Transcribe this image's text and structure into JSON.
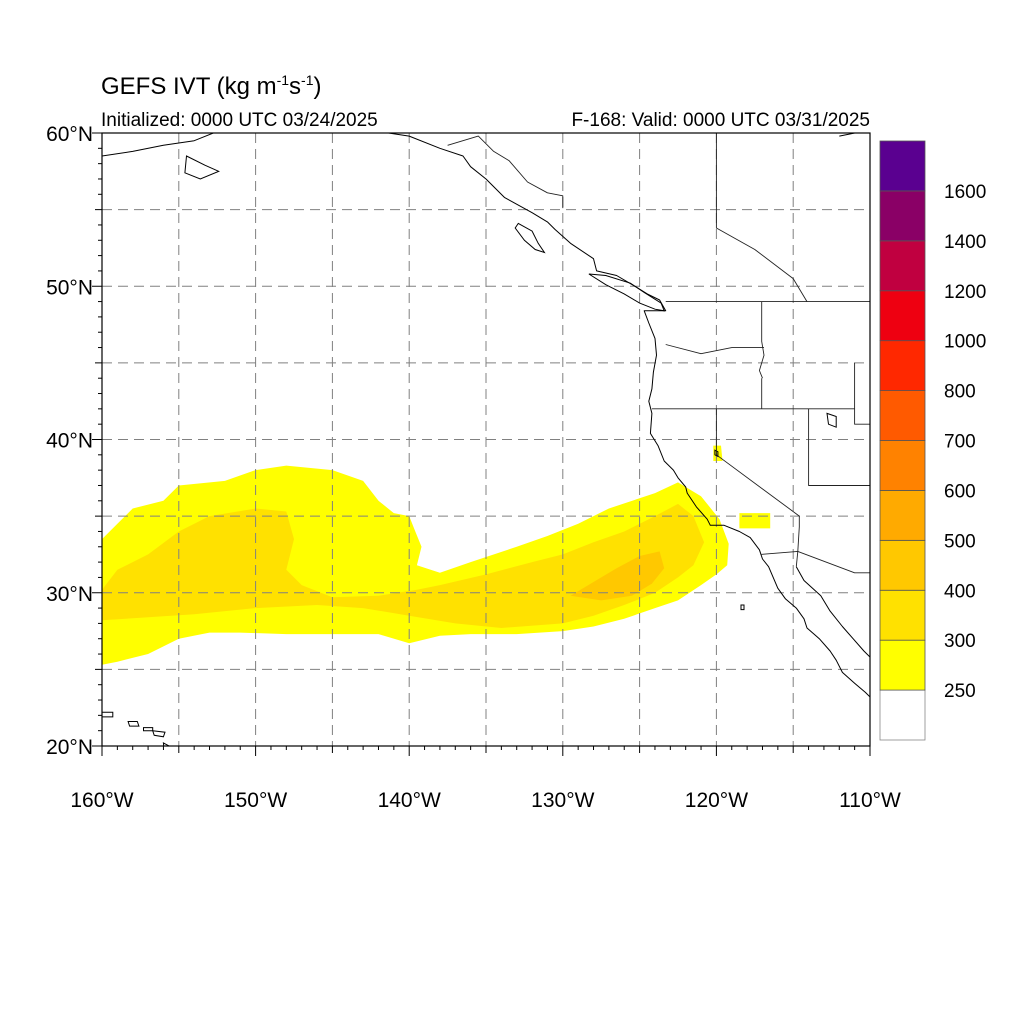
{
  "title": {
    "prefix": "GEFS IVT (kg m",
    "exp1": "-1",
    "mid": "s",
    "exp2": "-1",
    "suffix": ")"
  },
  "subtitle_left": "Initialized: 0000 UTC 03/24/2025",
  "subtitle_right": "F-168: Valid: 0000 UTC 03/31/2025",
  "map": {
    "lon_range": [
      -160,
      -110
    ],
    "lat_range": [
      20,
      60
    ],
    "lon_ticks": [
      {
        "value": -160,
        "label": "160°W"
      },
      {
        "value": -150,
        "label": "150°W"
      },
      {
        "value": -140,
        "label": "140°W"
      },
      {
        "value": -130,
        "label": "130°W"
      },
      {
        "value": -120,
        "label": "120°W"
      },
      {
        "value": -110,
        "label": "110°W"
      }
    ],
    "lat_ticks": [
      {
        "value": 60,
        "label": "60°N"
      },
      {
        "value": 50,
        "label": "50°N"
      },
      {
        "value": 40,
        "label": "40°N"
      },
      {
        "value": 30,
        "label": "30°N"
      },
      {
        "value": 20,
        "label": "20°N"
      }
    ],
    "grid_lon_step": 5,
    "grid_lat_step": 5,
    "grid": true,
    "grid_style": "dashed"
  },
  "legend": {
    "placement": "right",
    "bins": [
      {
        "min": 250,
        "max": 300,
        "color": "#ffff00"
      },
      {
        "min": 300,
        "max": 400,
        "color": "#ffe100"
      },
      {
        "min": 400,
        "max": 500,
        "color": "#ffc800"
      },
      {
        "min": 500,
        "max": 600,
        "color": "#ffaa00"
      },
      {
        "min": 600,
        "max": 700,
        "color": "#ff8200"
      },
      {
        "min": 700,
        "max": 800,
        "color": "#ff5a00"
      },
      {
        "min": 800,
        "max": 1000,
        "color": "#ff2800"
      },
      {
        "min": 1000,
        "max": 1200,
        "color": "#ee0011"
      },
      {
        "min": 1200,
        "max": 1400,
        "color": "#c00040"
      },
      {
        "min": 1400,
        "max": 1600,
        "color": "#8a0066"
      },
      {
        "min": 1600,
        "max": null,
        "color": "#5a0090"
      }
    ],
    "below_color": "#ffffff",
    "labels": [
      "250",
      "300",
      "400",
      "500",
      "600",
      "700",
      "800",
      "1000",
      "1200",
      "1400",
      "1600"
    ]
  },
  "chart_data": {
    "type": "heatmap",
    "field": "integrated vapor transport",
    "units": "kg m-1 s-1",
    "regions": [
      {
        "level": "250-300",
        "color": "#ffff00",
        "outline": [
          [
            -160,
            33.5
          ],
          [
            -159,
            34.5
          ],
          [
            -158,
            35.5
          ],
          [
            -156,
            36
          ],
          [
            -155,
            37
          ],
          [
            -152,
            37.3
          ],
          [
            -150,
            38
          ],
          [
            -148,
            38.3
          ],
          [
            -145,
            38
          ],
          [
            -143,
            37.3
          ],
          [
            -142,
            36
          ],
          [
            -141,
            35.2
          ],
          [
            -140,
            35
          ],
          [
            -139.6,
            34
          ],
          [
            -139.2,
            33
          ],
          [
            -139.5,
            31.8
          ],
          [
            -138,
            31.3
          ],
          [
            -136,
            32
          ],
          [
            -133,
            33
          ],
          [
            -131,
            33.7
          ],
          [
            -129,
            34.5
          ],
          [
            -127,
            35.5
          ],
          [
            -124,
            36.5
          ],
          [
            -122.5,
            37.2
          ],
          [
            -121,
            36.3
          ],
          [
            -119.8,
            34.8
          ],
          [
            -119.2,
            33.2
          ],
          [
            -119.3,
            31.8
          ],
          [
            -120,
            31.2
          ],
          [
            -121,
            30.5
          ],
          [
            -122.5,
            29.5
          ],
          [
            -124,
            29
          ],
          [
            -126,
            28.3
          ],
          [
            -128,
            27.8
          ],
          [
            -130,
            27.5
          ],
          [
            -133,
            27.3
          ],
          [
            -136,
            27.3
          ],
          [
            -138,
            27.2
          ],
          [
            -140,
            26.7
          ],
          [
            -142,
            27.3
          ],
          [
            -145,
            27.3
          ],
          [
            -148,
            27.3
          ],
          [
            -151,
            27.4
          ],
          [
            -153,
            27.4
          ],
          [
            -155,
            27
          ],
          [
            -157,
            26
          ],
          [
            -159,
            25.5
          ],
          [
            -160,
            25.3
          ]
        ]
      },
      {
        "level": "250-300",
        "color": "#ffff00",
        "outline": [
          [
            -120.2,
            39.6
          ],
          [
            -119.7,
            39.6
          ],
          [
            -119.6,
            38.6
          ],
          [
            -120.2,
            38.6
          ]
        ]
      },
      {
        "level": "250-300",
        "color": "#ffff00",
        "outline": [
          [
            -118.5,
            35.2
          ],
          [
            -116.5,
            35.2
          ],
          [
            -116.5,
            34.2
          ],
          [
            -118.5,
            34.2
          ]
        ]
      },
      {
        "level": "300-400",
        "color": "#ffe100",
        "outline": [
          [
            -160,
            30.2
          ],
          [
            -159,
            31.5
          ],
          [
            -157,
            32.5
          ],
          [
            -155,
            34
          ],
          [
            -153,
            35
          ],
          [
            -150,
            35.5
          ],
          [
            -148,
            35.3
          ],
          [
            -147.5,
            33.5
          ],
          [
            -148,
            31.5
          ],
          [
            -147,
            30.5
          ],
          [
            -145,
            29.7
          ],
          [
            -142,
            29.8
          ],
          [
            -139.5,
            30.2
          ],
          [
            -138,
            30.5
          ],
          [
            -135,
            31.2
          ],
          [
            -132,
            32
          ],
          [
            -130,
            32.5
          ],
          [
            -128,
            33.3
          ],
          [
            -126,
            34
          ],
          [
            -124,
            35
          ],
          [
            -122.5,
            35.8
          ],
          [
            -121.5,
            35
          ],
          [
            -120.8,
            33.3
          ],
          [
            -121.5,
            31.8
          ],
          [
            -122.5,
            31
          ],
          [
            -124,
            30
          ],
          [
            -126,
            29.2
          ],
          [
            -128,
            28.5
          ],
          [
            -130,
            28
          ],
          [
            -134,
            27.7
          ],
          [
            -137,
            28
          ],
          [
            -140,
            28.5
          ],
          [
            -143,
            29
          ],
          [
            -146,
            29.2
          ],
          [
            -150,
            29
          ],
          [
            -154,
            28.6
          ],
          [
            -157,
            28.4
          ],
          [
            -160,
            28.2
          ]
        ]
      },
      {
        "level": "400-500",
        "color": "#ffc800",
        "outline": [
          [
            -129.5,
            29.8
          ],
          [
            -128,
            30.7
          ],
          [
            -126.5,
            31.6
          ],
          [
            -125,
            32.4
          ],
          [
            -123.7,
            32.7
          ],
          [
            -123.4,
            31.6
          ],
          [
            -124.2,
            30.6
          ],
          [
            -125.5,
            29.8
          ],
          [
            -127.5,
            29.5
          ]
        ]
      }
    ]
  },
  "basemap": {
    "coastline_west": [
      [
        -166,
        60
      ],
      [
        -160,
        58.5
      ],
      [
        -158,
        58.8
      ],
      [
        -156,
        59.2
      ],
      [
        -154,
        59.5
      ],
      [
        -152,
        60.3
      ],
      [
        -151.5,
        61
      ],
      [
        -149.5,
        61
      ],
      [
        -148,
        60.6
      ],
      [
        -146,
        61
      ],
      [
        -144,
        60.2
      ],
      [
        -142,
        60.1
      ],
      [
        -140,
        59.8
      ],
      [
        -138,
        59
      ],
      [
        -136.5,
        58.5
      ],
      [
        -136,
        57.8
      ],
      [
        -135,
        57
      ],
      [
        -133.8,
        55.8
      ],
      [
        -132,
        54.8
      ],
      [
        -131,
        54.2
      ],
      [
        -130.5,
        53.7
      ],
      [
        -129.5,
        52.8
      ],
      [
        -128,
        51.8
      ],
      [
        -127.8,
        51
      ],
      [
        -126.5,
        50.7
      ],
      [
        -125.3,
        50
      ],
      [
        -124.5,
        49.5
      ],
      [
        -123.7,
        49.1
      ],
      [
        -123.3,
        48.4
      ],
      [
        -124.7,
        48.4
      ],
      [
        -124.4,
        47.6
      ],
      [
        -124,
        46.6
      ],
      [
        -123.9,
        45.5
      ],
      [
        -124.1,
        44.4
      ],
      [
        -124.2,
        43.3
      ],
      [
        -124.4,
        42.5
      ],
      [
        -124.2,
        41.7
      ],
      [
        -124.3,
        40.4
      ],
      [
        -123.8,
        39.6
      ],
      [
        -123.4,
        38.6
      ],
      [
        -122.8,
        38
      ],
      [
        -122.5,
        37.5
      ],
      [
        -122,
        36.9
      ],
      [
        -121.9,
        36.5
      ],
      [
        -121.3,
        35.6
      ],
      [
        -120.6,
        34.8
      ],
      [
        -120.4,
        34.4
      ],
      [
        -119.5,
        34.4
      ],
      [
        -118.5,
        34
      ],
      [
        -117.8,
        33.6
      ],
      [
        -117.2,
        32.8
      ],
      [
        -117,
        32.2
      ],
      [
        -116.6,
        31.7
      ],
      [
        -116.3,
        31
      ],
      [
        -116,
        30.3
      ],
      [
        -115.5,
        29.6
      ],
      [
        -114.8,
        29
      ],
      [
        -114.3,
        28.3
      ],
      [
        -114.1,
        27.7
      ],
      [
        -113.3,
        27
      ],
      [
        -112.6,
        26.2
      ],
      [
        -112.2,
        25.6
      ],
      [
        -111.8,
        24.8
      ],
      [
        -111,
        24.1
      ],
      [
        -110.3,
        23.5
      ],
      [
        -109.8,
        23
      ]
    ],
    "coastline_gulf": [
      [
        -114.8,
        31.7
      ],
      [
        -114.3,
        30.8
      ],
      [
        -113.2,
        29.8
      ],
      [
        -112.6,
        28.8
      ],
      [
        -111.8,
        27.8
      ],
      [
        -111.1,
        27
      ],
      [
        -110.4,
        26.2
      ],
      [
        -109.6,
        25.4
      ],
      [
        -109.3,
        24.6
      ],
      [
        -108.5,
        24
      ],
      [
        -107.5,
        23.5
      ],
      [
        -106.5,
        22.8
      ]
    ],
    "vancouver_island": [
      [
        -128.3,
        50.8
      ],
      [
        -127.2,
        50.1
      ],
      [
        -126,
        49.5
      ],
      [
        -125,
        48.9
      ],
      [
        -124,
        48.5
      ],
      [
        -123.4,
        48.4
      ],
      [
        -123.6,
        48.9
      ],
      [
        -124.7,
        49.6
      ],
      [
        -125.6,
        50.2
      ],
      [
        -127.2,
        50.7
      ]
    ],
    "haida_gwaii": [
      [
        -132.9,
        54.1
      ],
      [
        -132,
        53.6
      ],
      [
        -131.6,
        52.8
      ],
      [
        -131.2,
        52.2
      ],
      [
        -131.8,
        52.4
      ],
      [
        -132.5,
        53
      ],
      [
        -133.1,
        53.8
      ]
    ],
    "kodiak": [
      [
        -154.5,
        58.5
      ],
      [
        -153.3,
        57.9
      ],
      [
        -152.4,
        57.5
      ],
      [
        -153.6,
        57
      ],
      [
        -154.6,
        57.4
      ]
    ],
    "hawaii_islands": [
      [
        [
          -160.6,
          22.2
        ],
        [
          -159.3,
          22.2
        ],
        [
          -159.3,
          21.9
        ],
        [
          -160.5,
          21.9
        ]
      ],
      [
        [
          -158.3,
          21.6
        ],
        [
          -157.7,
          21.6
        ],
        [
          -157.6,
          21.3
        ],
        [
          -158.2,
          21.3
        ]
      ],
      [
        [
          -157.3,
          21.2
        ],
        [
          -156.7,
          21.2
        ],
        [
          -156.7,
          21.0
        ],
        [
          -157.3,
          21.0
        ]
      ],
      [
        [
          -156.7,
          21.0
        ],
        [
          -155.9,
          20.9
        ],
        [
          -156.0,
          20.6
        ],
        [
          -156.6,
          20.7
        ]
      ],
      [
        [
          -156.0,
          20.2
        ],
        [
          -154.9,
          19.6
        ],
        [
          -155.2,
          19.0
        ],
        [
          -155.9,
          19.2
        ]
      ]
    ],
    "guadalupe_island": [
      [
        -118.4,
        29.2
      ],
      [
        -118.2,
        29.2
      ],
      [
        -118.2,
        28.9
      ],
      [
        -118.4,
        28.9
      ]
    ],
    "great_salt_lake": [
      [
        -112.8,
        41.7
      ],
      [
        -112.2,
        41.5
      ],
      [
        -112.2,
        40.8
      ],
      [
        -112.7,
        41.0
      ]
    ],
    "lake_tahoe": [
      [
        -120.1,
        39.3
      ],
      [
        -119.9,
        39.2
      ],
      [
        -119.9,
        38.9
      ],
      [
        -120.1,
        39.0
      ]
    ],
    "borders": [
      [
        [
          -141,
          60.3
        ],
        [
          -141,
          60
        ]
      ],
      [
        [
          -137.5,
          59.2
        ],
        [
          -135.5,
          59.8
        ],
        [
          -134.5,
          58.8
        ],
        [
          -133.5,
          58.2
        ],
        [
          -132.3,
          56.8
        ],
        [
          -131,
          56.1
        ],
        [
          -130,
          55.9
        ],
        [
          -130,
          55.1
        ]
      ],
      [
        [
          -123.3,
          49
        ],
        [
          -95,
          49
        ]
      ],
      [
        [
          -120,
          60
        ],
        [
          -120,
          53.8
        ],
        [
          -117.5,
          52.4
        ],
        [
          -115,
          50.5
        ],
        [
          -114.1,
          49
        ]
      ],
      [
        [
          -124.2,
          42
        ],
        [
          -111,
          42
        ]
      ],
      [
        [
          -123.3,
          46.2
        ],
        [
          -121,
          45.6
        ],
        [
          -119,
          46
        ],
        [
          -116.9,
          46
        ]
      ],
      [
        [
          -117.05,
          49
        ],
        [
          -117.05,
          46.4
        ],
        [
          -116.9,
          45.5
        ],
        [
          -117.2,
          44.5
        ],
        [
          -117.0,
          44
        ]
      ],
      [
        [
          -117.05,
          44
        ],
        [
          -117.05,
          42
        ]
      ],
      [
        [
          -120,
          42
        ],
        [
          -120,
          39
        ],
        [
          -114.6,
          35
        ],
        [
          -114.6,
          34.3
        ],
        [
          -114.7,
          32.7
        ]
      ],
      [
        [
          -114,
          42
        ],
        [
          -114,
          37
        ],
        [
          -110,
          37
        ]
      ],
      [
        [
          -111,
          45
        ],
        [
          -111,
          41
        ],
        [
          -110,
          41
        ]
      ],
      [
        [
          -117.1,
          32.5
        ],
        [
          -114.7,
          32.7
        ],
        [
          -111,
          31.3
        ],
        [
          -108.2,
          31.3
        ]
      ],
      [
        [
          -114.7,
          32.7
        ],
        [
          -114.8,
          31.7
        ]
      ]
    ],
    "coast_east_top": [
      [
        -112,
        59.8
      ],
      [
        -110.5,
        60.1
      ],
      [
        -109,
        60.2
      ]
    ]
  }
}
